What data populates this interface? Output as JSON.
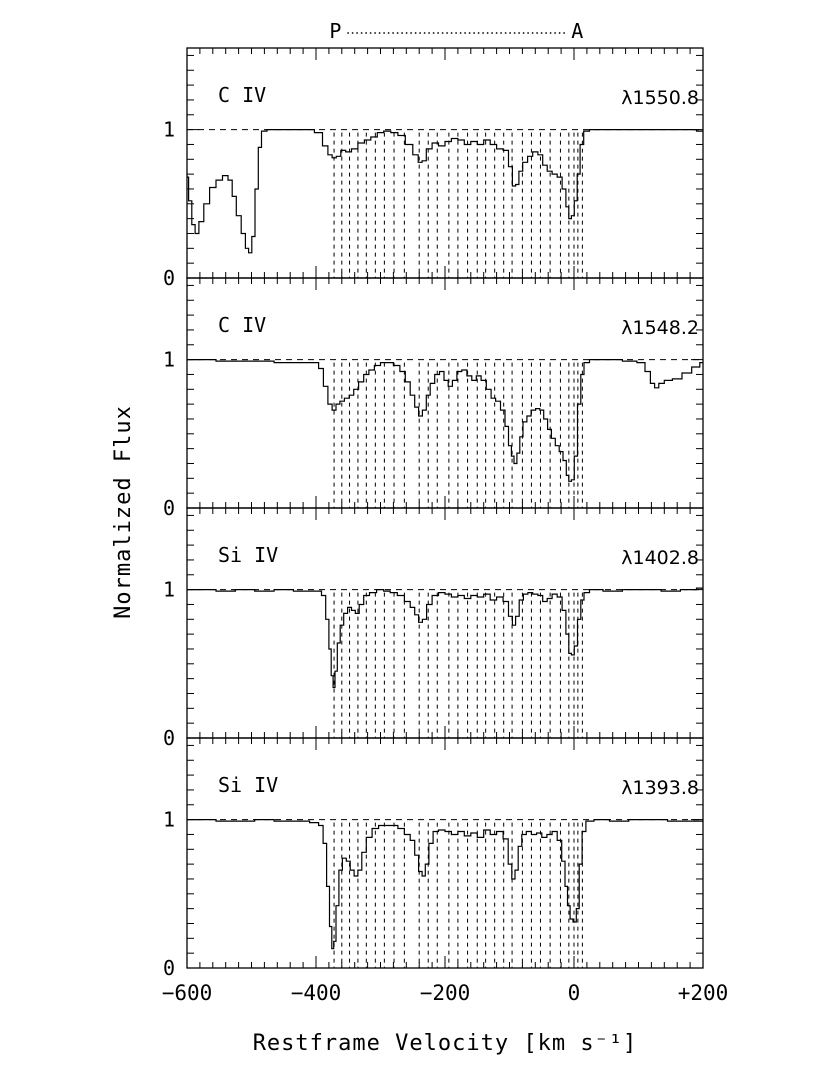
{
  "chart_data": {
    "type": "line",
    "xlabel": "Restframe Velocity [km s⁻¹]",
    "ylabel": "Normalized Flux",
    "xlim": [
      -600,
      200
    ],
    "ylim": [
      0,
      1.55
    ],
    "x_ticks": [
      -600,
      -400,
      -200,
      0,
      200
    ],
    "x_tick_labels": [
      "−600",
      "−400",
      "−200",
      "0",
      "+200"
    ],
    "y_ticks": [
      0,
      1
    ],
    "y_tick_labels": [
      "0",
      "1"
    ],
    "continuum_level": 1,
    "top_annotation": {
      "start_label": "P",
      "end_label": "A",
      "from_velocity": -370,
      "to_velocity": 5
    },
    "component_velocities": [
      -372,
      -360,
      -348,
      -335,
      -322,
      -308,
      -294,
      -279,
      -263,
      -240,
      -226,
      -212,
      -194,
      -180,
      -165,
      -150,
      -137,
      -123,
      -109,
      -96,
      -80,
      -66,
      -52,
      -37,
      -21,
      -8,
      0,
      6,
      13
    ],
    "panels": [
      {
        "ion": "C IV",
        "wavelength_label": "λ1550.8",
        "points": [
          [
            -600,
            0.68
          ],
          [
            -595,
            0.52
          ],
          [
            -590,
            0.36
          ],
          [
            -585,
            0.3
          ],
          [
            -578,
            0.38
          ],
          [
            -570,
            0.5
          ],
          [
            -560,
            0.61
          ],
          [
            -550,
            0.66
          ],
          [
            -540,
            0.69
          ],
          [
            -533,
            0.66
          ],
          [
            -527,
            0.55
          ],
          [
            -520,
            0.42
          ],
          [
            -512,
            0.3
          ],
          [
            -507,
            0.2
          ],
          [
            -502,
            0.17
          ],
          [
            -497,
            0.28
          ],
          [
            -492,
            0.6
          ],
          [
            -487,
            0.88
          ],
          [
            -482,
            0.99
          ],
          [
            -470,
            1.0
          ],
          [
            -450,
            1.0
          ],
          [
            -430,
            1.0
          ],
          [
            -410,
            1.0
          ],
          [
            -395,
            0.98
          ],
          [
            -385,
            0.89
          ],
          [
            -378,
            0.83
          ],
          [
            -372,
            0.81
          ],
          [
            -365,
            0.82
          ],
          [
            -358,
            0.86
          ],
          [
            -350,
            0.85
          ],
          [
            -340,
            0.87
          ],
          [
            -330,
            0.91
          ],
          [
            -320,
            0.93
          ],
          [
            -310,
            0.95
          ],
          [
            -300,
            0.98
          ],
          [
            -290,
            0.99
          ],
          [
            -278,
            0.98
          ],
          [
            -268,
            0.96
          ],
          [
            -255,
            0.9
          ],
          [
            -245,
            0.83
          ],
          [
            -238,
            0.78
          ],
          [
            -233,
            0.79
          ],
          [
            -225,
            0.87
          ],
          [
            -215,
            0.91
          ],
          [
            -205,
            0.89
          ],
          [
            -195,
            0.92
          ],
          [
            -185,
            0.94
          ],
          [
            -175,
            0.93
          ],
          [
            -165,
            0.9
          ],
          [
            -155,
            0.92
          ],
          [
            -145,
            0.9
          ],
          [
            -135,
            0.93
          ],
          [
            -125,
            0.9
          ],
          [
            -115,
            0.87
          ],
          [
            -105,
            0.86
          ],
          [
            -98,
            0.75
          ],
          [
            -93,
            0.62
          ],
          [
            -88,
            0.63
          ],
          [
            -83,
            0.72
          ],
          [
            -76,
            0.78
          ],
          [
            -68,
            0.82
          ],
          [
            -60,
            0.85
          ],
          [
            -52,
            0.83
          ],
          [
            -45,
            0.76
          ],
          [
            -38,
            0.72
          ],
          [
            -30,
            0.7
          ],
          [
            -22,
            0.68
          ],
          [
            -15,
            0.6
          ],
          [
            -10,
            0.48
          ],
          [
            -6,
            0.4
          ],
          [
            -2,
            0.42
          ],
          [
            3,
            0.52
          ],
          [
            7,
            0.7
          ],
          [
            12,
            0.9
          ],
          [
            18,
            0.99
          ],
          [
            30,
            1.0
          ],
          [
            60,
            1.0
          ],
          [
            100,
            1.0
          ],
          [
            140,
            1.0
          ],
          [
            180,
            1.0
          ],
          [
            200,
            0.99
          ]
        ]
      },
      {
        "ion": "C IV",
        "wavelength_label": "λ1548.2",
        "points": [
          [
            -600,
            1.0
          ],
          [
            -570,
            1.0
          ],
          [
            -540,
            0.99
          ],
          [
            -510,
            0.99
          ],
          [
            -480,
            0.99
          ],
          [
            -450,
            0.98
          ],
          [
            -420,
            0.98
          ],
          [
            -400,
            0.98
          ],
          [
            -392,
            0.94
          ],
          [
            -385,
            0.82
          ],
          [
            -378,
            0.7
          ],
          [
            -372,
            0.66
          ],
          [
            -366,
            0.7
          ],
          [
            -360,
            0.72
          ],
          [
            -352,
            0.74
          ],
          [
            -345,
            0.76
          ],
          [
            -338,
            0.8
          ],
          [
            -330,
            0.85
          ],
          [
            -322,
            0.9
          ],
          [
            -314,
            0.93
          ],
          [
            -305,
            0.96
          ],
          [
            -295,
            0.98
          ],
          [
            -285,
            0.98
          ],
          [
            -275,
            0.96
          ],
          [
            -265,
            0.92
          ],
          [
            -258,
            0.85
          ],
          [
            -250,
            0.76
          ],
          [
            -244,
            0.68
          ],
          [
            -238,
            0.62
          ],
          [
            -232,
            0.66
          ],
          [
            -226,
            0.76
          ],
          [
            -220,
            0.84
          ],
          [
            -212,
            0.9
          ],
          [
            -205,
            0.92
          ],
          [
            -198,
            0.86
          ],
          [
            -192,
            0.82
          ],
          [
            -185,
            0.86
          ],
          [
            -178,
            0.92
          ],
          [
            -170,
            0.93
          ],
          [
            -162,
            0.89
          ],
          [
            -155,
            0.86
          ],
          [
            -148,
            0.89
          ],
          [
            -140,
            0.86
          ],
          [
            -132,
            0.8
          ],
          [
            -125,
            0.74
          ],
          [
            -118,
            0.72
          ],
          [
            -110,
            0.66
          ],
          [
            -104,
            0.55
          ],
          [
            -99,
            0.42
          ],
          [
            -95,
            0.35
          ],
          [
            -91,
            0.3
          ],
          [
            -86,
            0.37
          ],
          [
            -82,
            0.48
          ],
          [
            -76,
            0.58
          ],
          [
            -70,
            0.62
          ],
          [
            -63,
            0.66
          ],
          [
            -56,
            0.67
          ],
          [
            -50,
            0.66
          ],
          [
            -44,
            0.6
          ],
          [
            -38,
            0.53
          ],
          [
            -32,
            0.47
          ],
          [
            -26,
            0.42
          ],
          [
            -20,
            0.38
          ],
          [
            -14,
            0.32
          ],
          [
            -10,
            0.22
          ],
          [
            -6,
            0.18
          ],
          [
            -2,
            0.19
          ],
          [
            3,
            0.35
          ],
          [
            8,
            0.7
          ],
          [
            13,
            0.9
          ],
          [
            18,
            0.98
          ],
          [
            30,
            1.0
          ],
          [
            60,
            1.0
          ],
          [
            90,
            0.99
          ],
          [
            105,
            0.98
          ],
          [
            115,
            0.92
          ],
          [
            122,
            0.84
          ],
          [
            128,
            0.81
          ],
          [
            135,
            0.84
          ],
          [
            145,
            0.86
          ],
          [
            160,
            0.87
          ],
          [
            175,
            0.91
          ],
          [
            190,
            0.95
          ],
          [
            200,
            0.98
          ]
        ]
      },
      {
        "ion": "Si IV",
        "wavelength_label": "λ1402.8",
        "points": [
          [
            -600,
            1.0
          ],
          [
            -570,
            1.0
          ],
          [
            -540,
            0.99
          ],
          [
            -510,
            1.0
          ],
          [
            -480,
            0.99
          ],
          [
            -450,
            1.0
          ],
          [
            -420,
            0.99
          ],
          [
            -395,
            0.99
          ],
          [
            -388,
            0.96
          ],
          [
            -382,
            0.8
          ],
          [
            -378,
            0.6
          ],
          [
            -375,
            0.42
          ],
          [
            -372,
            0.34
          ],
          [
            -369,
            0.45
          ],
          [
            -365,
            0.64
          ],
          [
            -360,
            0.76
          ],
          [
            -354,
            0.84
          ],
          [
            -348,
            0.88
          ],
          [
            -342,
            0.86
          ],
          [
            -336,
            0.84
          ],
          [
            -330,
            0.9
          ],
          [
            -322,
            0.96
          ],
          [
            -312,
            0.98
          ],
          [
            -300,
            1.0
          ],
          [
            -290,
            0.99
          ],
          [
            -280,
            0.98
          ],
          [
            -268,
            0.96
          ],
          [
            -258,
            0.92
          ],
          [
            -250,
            0.88
          ],
          [
            -244,
            0.83
          ],
          [
            -238,
            0.78
          ],
          [
            -232,
            0.8
          ],
          [
            -225,
            0.9
          ],
          [
            -215,
            0.96
          ],
          [
            -205,
            0.98
          ],
          [
            -195,
            0.97
          ],
          [
            -185,
            0.95
          ],
          [
            -175,
            0.96
          ],
          [
            -165,
            0.94
          ],
          [
            -155,
            0.96
          ],
          [
            -145,
            0.95
          ],
          [
            -135,
            0.97
          ],
          [
            -125,
            0.93
          ],
          [
            -115,
            0.95
          ],
          [
            -105,
            0.92
          ],
          [
            -98,
            0.82
          ],
          [
            -93,
            0.76
          ],
          [
            -88,
            0.82
          ],
          [
            -82,
            0.93
          ],
          [
            -75,
            0.97
          ],
          [
            -68,
            0.98
          ],
          [
            -60,
            0.97
          ],
          [
            -52,
            0.96
          ],
          [
            -45,
            0.92
          ],
          [
            -38,
            0.94
          ],
          [
            -30,
            0.97
          ],
          [
            -22,
            0.95
          ],
          [
            -15,
            0.86
          ],
          [
            -10,
            0.7
          ],
          [
            -6,
            0.57
          ],
          [
            -2,
            0.56
          ],
          [
            3,
            0.62
          ],
          [
            8,
            0.8
          ],
          [
            13,
            0.93
          ],
          [
            18,
            0.98
          ],
          [
            30,
            1.0
          ],
          [
            60,
            0.99
          ],
          [
            90,
            1.0
          ],
          [
            120,
            1.0
          ],
          [
            150,
            0.99
          ],
          [
            180,
            1.0
          ],
          [
            200,
            1.01
          ]
        ]
      },
      {
        "ion": "Si IV",
        "wavelength_label": "λ1393.8",
        "points": [
          [
            -600,
            1.0
          ],
          [
            -570,
            1.0
          ],
          [
            -540,
            0.99
          ],
          [
            -510,
            0.99
          ],
          [
            -480,
            1.0
          ],
          [
            -450,
            0.99
          ],
          [
            -420,
            0.99
          ],
          [
            -400,
            0.98
          ],
          [
            -392,
            0.96
          ],
          [
            -386,
            0.84
          ],
          [
            -381,
            0.55
          ],
          [
            -377,
            0.28
          ],
          [
            -374,
            0.13
          ],
          [
            -371,
            0.18
          ],
          [
            -367,
            0.42
          ],
          [
            -362,
            0.66
          ],
          [
            -356,
            0.74
          ],
          [
            -350,
            0.72
          ],
          [
            -344,
            0.66
          ],
          [
            -338,
            0.62
          ],
          [
            -332,
            0.66
          ],
          [
            -326,
            0.78
          ],
          [
            -318,
            0.88
          ],
          [
            -308,
            0.94
          ],
          [
            -298,
            0.96
          ],
          [
            -288,
            0.96
          ],
          [
            -278,
            0.96
          ],
          [
            -268,
            0.94
          ],
          [
            -258,
            0.9
          ],
          [
            -250,
            0.86
          ],
          [
            -244,
            0.76
          ],
          [
            -238,
            0.65
          ],
          [
            -233,
            0.62
          ],
          [
            -228,
            0.7
          ],
          [
            -222,
            0.84
          ],
          [
            -215,
            0.92
          ],
          [
            -205,
            0.93
          ],
          [
            -195,
            0.92
          ],
          [
            -185,
            0.9
          ],
          [
            -175,
            0.92
          ],
          [
            -165,
            0.89
          ],
          [
            -155,
            0.91
          ],
          [
            -145,
            0.88
          ],
          [
            -135,
            0.93
          ],
          [
            -125,
            0.9
          ],
          [
            -115,
            0.92
          ],
          [
            -105,
            0.87
          ],
          [
            -99,
            0.7
          ],
          [
            -94,
            0.6
          ],
          [
            -89,
            0.66
          ],
          [
            -84,
            0.82
          ],
          [
            -78,
            0.9
          ],
          [
            -70,
            0.92
          ],
          [
            -62,
            0.9
          ],
          [
            -54,
            0.91
          ],
          [
            -46,
            0.88
          ],
          [
            -38,
            0.9
          ],
          [
            -30,
            0.92
          ],
          [
            -22,
            0.86
          ],
          [
            -16,
            0.72
          ],
          [
            -12,
            0.55
          ],
          [
            -8,
            0.42
          ],
          [
            -4,
            0.33
          ],
          [
            1,
            0.31
          ],
          [
            6,
            0.4
          ],
          [
            10,
            0.7
          ],
          [
            15,
            0.92
          ],
          [
            22,
            0.99
          ],
          [
            40,
            1.0
          ],
          [
            70,
            0.99
          ],
          [
            100,
            1.0
          ],
          [
            130,
            1.0
          ],
          [
            160,
            0.99
          ],
          [
            200,
            0.99
          ]
        ]
      }
    ]
  }
}
